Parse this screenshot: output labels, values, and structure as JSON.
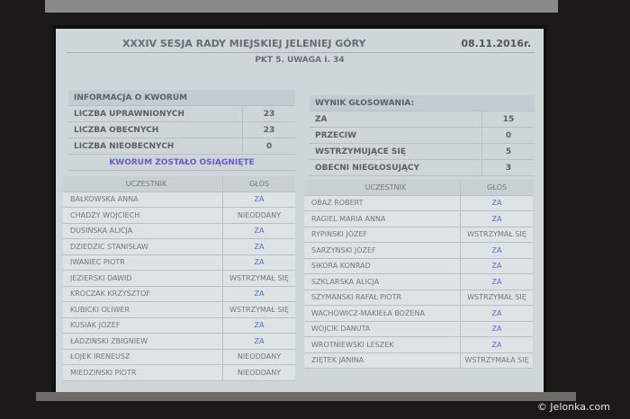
{
  "header": {
    "title": "XXXIV SESJA RADY MIEJSKIEJ JELENIEJ GÓRY",
    "date": "08.11.2016r.",
    "item": "PKT 5. UWAGA I. 34"
  },
  "quorum": {
    "title": "INFORMACJA O KWORUM",
    "rows": [
      {
        "label": "LICZBA UPRAWNIONYCH",
        "value": "23"
      },
      {
        "label": "LICZBA OBECNYCH",
        "value": "23"
      },
      {
        "label": "LICZBA NIEOBECNYCH",
        "value": "0"
      }
    ],
    "status": "KWORUM ZOSTAŁO OSIĄGNIĘTE"
  },
  "result": {
    "title": "WYNIK GŁOSOWANIA:",
    "rows": [
      {
        "label": "ZA",
        "value": "15"
      },
      {
        "label": "PRZECIW",
        "value": "0"
      },
      {
        "label": "WSTRZYMUJĄCE SIĘ",
        "value": "5"
      },
      {
        "label": "OBECNI NIEGŁOSUJĄCY",
        "value": "3"
      }
    ]
  },
  "columns": {
    "name": "UCZESTNIK",
    "vote": "GŁOS"
  },
  "left_votes": [
    {
      "name": "BAŁKOWSKA ANNA",
      "vote": "ZA"
    },
    {
      "name": "CHADŻY WOJCIECH",
      "vote": "NIEODDANY"
    },
    {
      "name": "DUSIŃSKA ALICJA",
      "vote": "ZA"
    },
    {
      "name": "DZIEDZIC STANISŁAW",
      "vote": "ZA"
    },
    {
      "name": "IWANIEC PIOTR",
      "vote": "ZA"
    },
    {
      "name": "JEZIERSKI DAWID",
      "vote": "WSTRZYMAŁ SIĘ"
    },
    {
      "name": "KROCZAK KRZYSZTOF",
      "vote": "ZA"
    },
    {
      "name": "KUBICKI OLIWER",
      "vote": "WSTRZYMAŁ SIĘ"
    },
    {
      "name": "KUSIAK JÓZEF",
      "vote": "ZA"
    },
    {
      "name": "ŁADZIŃSKI ZBIGNIEW",
      "vote": "ZA"
    },
    {
      "name": "ŁOJEK IRENEUSZ",
      "vote": "NIEODDANY"
    },
    {
      "name": "MIEDZIŃSKI PIOTR",
      "vote": "NIEODDANY"
    }
  ],
  "right_votes": [
    {
      "name": "OBAZ ROBERT",
      "vote": "ZA"
    },
    {
      "name": "RAGIEL MARIA ANNA",
      "vote": "ZA"
    },
    {
      "name": "RYPIŃSKI JÓZEF",
      "vote": "WSTRZYMAŁ SIĘ"
    },
    {
      "name": "SARZYŃSKI JÓZEF",
      "vote": "ZA"
    },
    {
      "name": "SIKORA KONRAD",
      "vote": "ZA"
    },
    {
      "name": "SZKLARSKA ALICJA",
      "vote": "ZA"
    },
    {
      "name": "SZYMAŃSKI RAFAŁ PIOTR",
      "vote": "WSTRZYMAŁ SIĘ"
    },
    {
      "name": "WACHOWICZ-MAKIEŁA BOŻENA",
      "vote": "ZA"
    },
    {
      "name": "WÓJCIK DANUTA",
      "vote": "ZA"
    },
    {
      "name": "WROTNIEWSKI LESZEK",
      "vote": "ZA"
    },
    {
      "name": "ZIĘTEK JANINA",
      "vote": "WSTRZYMAŁA SIĘ"
    }
  ],
  "watermark": "© Jelonka.com"
}
